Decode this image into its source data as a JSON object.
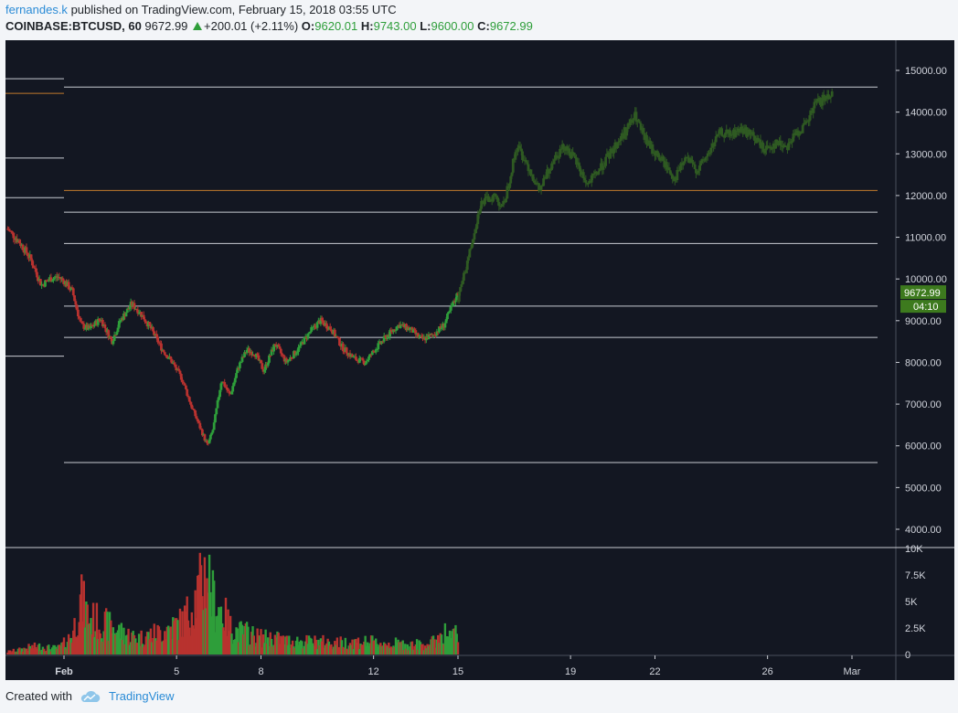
{
  "header": {
    "author": "fernandes.k",
    "published_text": "published on TradingView.com, February 15, 2018 03:55 UTC"
  },
  "symbol_line": {
    "symbol": "COINBASE:BTCUSD, 60",
    "last": "9672.99",
    "change": "+200.01 (+2.11%)",
    "o_label": "O:",
    "o_value": "9620.01",
    "h_label": "H:",
    "h_value": "9743.00",
    "l_label": "L:",
    "l_value": "9600.00",
    "c_label": "C:",
    "c_value": "9672.99"
  },
  "footer": {
    "created_with": "Created with",
    "brand": "TradingView"
  },
  "colors": {
    "background": "#131722",
    "up": "#2e9e3a",
    "down": "#b8322f",
    "projection": "#2f5a22",
    "level_line": "#c8cbd2",
    "orange_line": "#c07a2c",
    "price_badge": "#3d7a1e"
  },
  "chart_data": {
    "type": "candlestick",
    "symbol": "COINBASE:BTCUSD",
    "interval": "60",
    "y_ticks": [
      "15000.00",
      "14000.00",
      "13000.00",
      "12000.00",
      "11000.00",
      "10000.00",
      "9000.00",
      "8000.00",
      "7000.00",
      "6000.00",
      "5000.00",
      "4000.00"
    ],
    "ylim": [
      3600,
      15750
    ],
    "volume_ticks": [
      "10K",
      "7.5K",
      "5K",
      "2.5K",
      "0"
    ],
    "volume_ylim": [
      0,
      10000
    ],
    "x_ticks": [
      "Feb",
      "5",
      "8",
      "12",
      "15",
      "19",
      "22",
      "26",
      "Mar"
    ],
    "x_tick_days": [
      1,
      5,
      8,
      12,
      15,
      19,
      22,
      26,
      29
    ],
    "x_range_days": [
      -1,
      30
    ],
    "last_price_badge": "9672.99",
    "countdown_badge": "04:10",
    "horizontal_levels": [
      14600,
      11600,
      10850,
      9350,
      8600,
      5600
    ],
    "orange_level": 12120,
    "left_short_levels": [
      14800,
      14450,
      12900,
      11950,
      8150
    ],
    "history": [
      {
        "day": -1.0,
        "price": 11200,
        "vol": 300
      },
      {
        "day": -0.6,
        "price": 10900,
        "vol": 500
      },
      {
        "day": -0.2,
        "price": 10500,
        "vol": 800
      },
      {
        "day": 0.2,
        "price": 9850,
        "vol": 900
      },
      {
        "day": 0.5,
        "price": 10000,
        "vol": 700
      },
      {
        "day": 0.8,
        "price": 10050,
        "vol": 700
      },
      {
        "day": 1.0,
        "price": 9950,
        "vol": 1200
      },
      {
        "day": 1.3,
        "price": 9700,
        "vol": 2200
      },
      {
        "day": 1.6,
        "price": 8900,
        "vol": 6000
      },
      {
        "day": 1.9,
        "price": 8800,
        "vol": 4000
      },
      {
        "day": 2.3,
        "price": 9050,
        "vol": 3500
      },
      {
        "day": 2.7,
        "price": 8500,
        "vol": 3000
      },
      {
        "day": 3.0,
        "price": 9000,
        "vol": 2500
      },
      {
        "day": 3.4,
        "price": 9400,
        "vol": 2000
      },
      {
        "day": 3.7,
        "price": 9200,
        "vol": 1800
      },
      {
        "day": 4.1,
        "price": 8800,
        "vol": 2200
      },
      {
        "day": 4.5,
        "price": 8300,
        "vol": 2500
      },
      {
        "day": 4.8,
        "price": 8050,
        "vol": 3000
      },
      {
        "day": 5.2,
        "price": 7600,
        "vol": 3500
      },
      {
        "day": 5.5,
        "price": 7000,
        "vol": 5000
      },
      {
        "day": 5.8,
        "price": 6500,
        "vol": 7000
      },
      {
        "day": 6.1,
        "price": 6000,
        "vol": 9500
      },
      {
        "day": 6.3,
        "price": 6400,
        "vol": 6000
      },
      {
        "day": 6.6,
        "price": 7600,
        "vol": 5000
      },
      {
        "day": 6.9,
        "price": 7200,
        "vol": 3000
      },
      {
        "day": 7.2,
        "price": 7900,
        "vol": 2500
      },
      {
        "day": 7.5,
        "price": 8300,
        "vol": 2400
      },
      {
        "day": 7.8,
        "price": 8200,
        "vol": 2000
      },
      {
        "day": 8.1,
        "price": 7800,
        "vol": 1800
      },
      {
        "day": 8.5,
        "price": 8450,
        "vol": 1800
      },
      {
        "day": 8.9,
        "price": 8000,
        "vol": 1500
      },
      {
        "day": 9.3,
        "price": 8300,
        "vol": 1500
      },
      {
        "day": 9.7,
        "price": 8700,
        "vol": 1400
      },
      {
        "day": 10.1,
        "price": 9000,
        "vol": 1400
      },
      {
        "day": 10.5,
        "price": 8800,
        "vol": 1300
      },
      {
        "day": 10.9,
        "price": 8350,
        "vol": 1300
      },
      {
        "day": 11.3,
        "price": 8100,
        "vol": 1400
      },
      {
        "day": 11.7,
        "price": 8000,
        "vol": 1400
      },
      {
        "day": 12.1,
        "price": 8350,
        "vol": 1300
      },
      {
        "day": 12.5,
        "price": 8650,
        "vol": 1200
      },
      {
        "day": 12.9,
        "price": 8900,
        "vol": 1200
      },
      {
        "day": 13.3,
        "price": 8800,
        "vol": 1100
      },
      {
        "day": 13.7,
        "price": 8550,
        "vol": 1100
      },
      {
        "day": 14.1,
        "price": 8650,
        "vol": 1300
      },
      {
        "day": 14.5,
        "price": 8900,
        "vol": 2500
      },
      {
        "day": 14.8,
        "price": 9350,
        "vol": 1800
      },
      {
        "day": 15.0,
        "price": 9670,
        "vol": 2800
      }
    ],
    "projection": [
      {
        "day": 15.0,
        "price": 9500
      },
      {
        "day": 15.4,
        "price": 10600
      },
      {
        "day": 15.8,
        "price": 11800
      },
      {
        "day": 16.3,
        "price": 12000
      },
      {
        "day": 16.6,
        "price": 11700
      },
      {
        "day": 17.1,
        "price": 13200
      },
      {
        "day": 17.5,
        "price": 12700
      },
      {
        "day": 17.9,
        "price": 12100
      },
      {
        "day": 18.4,
        "price": 12900
      },
      {
        "day": 18.8,
        "price": 13200
      },
      {
        "day": 19.2,
        "price": 12800
      },
      {
        "day": 19.6,
        "price": 12250
      },
      {
        "day": 20.0,
        "price": 12600
      },
      {
        "day": 20.4,
        "price": 13000
      },
      {
        "day": 20.8,
        "price": 13400
      },
      {
        "day": 21.3,
        "price": 13900
      },
      {
        "day": 21.6,
        "price": 13400
      },
      {
        "day": 21.9,
        "price": 13100
      },
      {
        "day": 22.3,
        "price": 12800
      },
      {
        "day": 22.7,
        "price": 12400
      },
      {
        "day": 23.1,
        "price": 12900
      },
      {
        "day": 23.5,
        "price": 12600
      },
      {
        "day": 23.9,
        "price": 13000
      },
      {
        "day": 24.3,
        "price": 13500
      },
      {
        "day": 24.7,
        "price": 13450
      },
      {
        "day": 25.1,
        "price": 13600
      },
      {
        "day": 25.5,
        "price": 13400
      },
      {
        "day": 25.9,
        "price": 13100
      },
      {
        "day": 26.3,
        "price": 13250
      },
      {
        "day": 26.7,
        "price": 13200
      },
      {
        "day": 27.1,
        "price": 13550
      },
      {
        "day": 27.4,
        "price": 13700
      },
      {
        "day": 27.7,
        "price": 14200
      },
      {
        "day": 28.0,
        "price": 14300
      },
      {
        "day": 28.3,
        "price": 14500
      }
    ]
  }
}
